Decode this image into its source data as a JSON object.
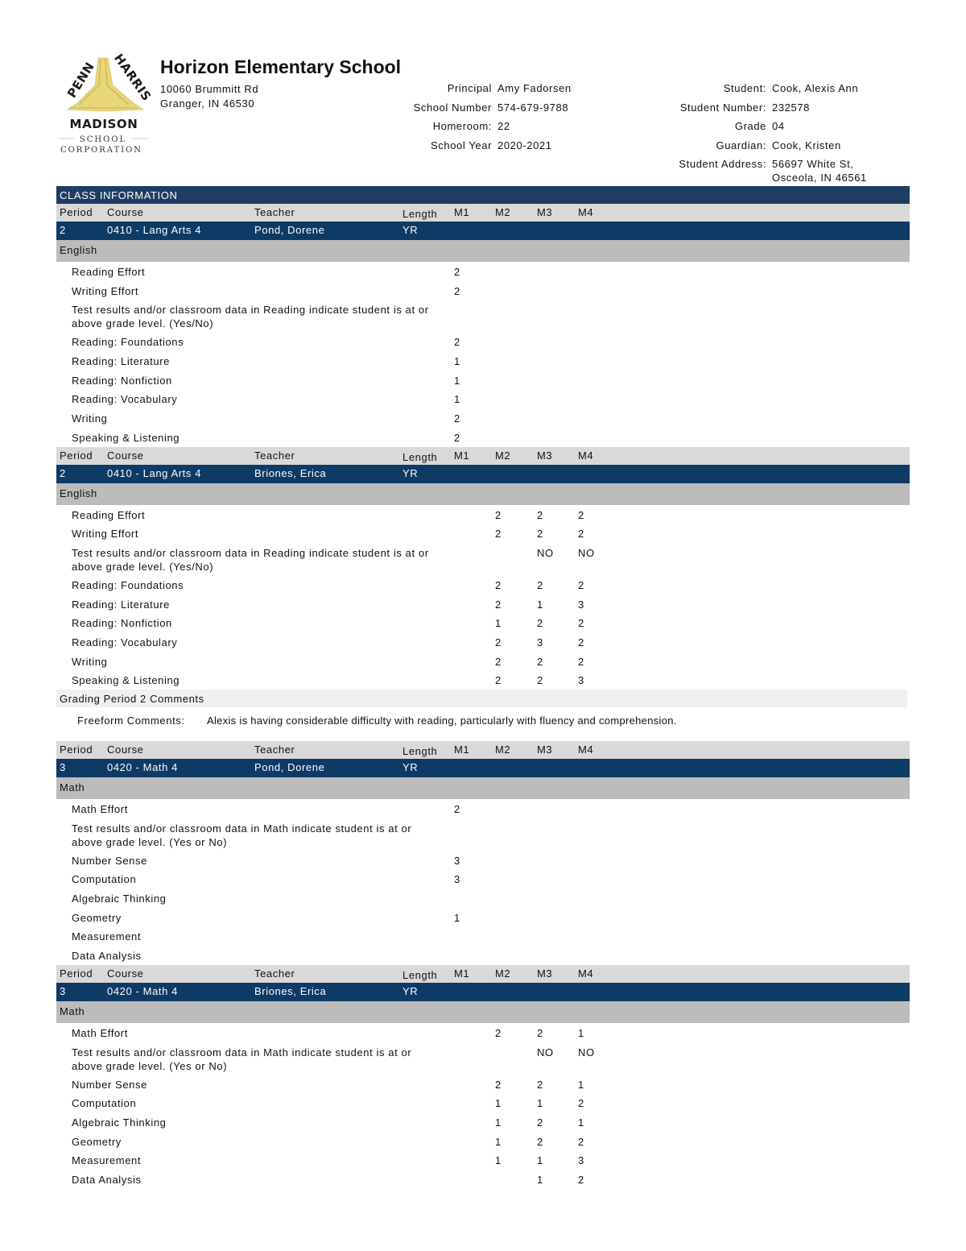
{
  "logo": {
    "text_top_left": "PENN",
    "text_top_right": "HARRIS",
    "text_mid": "MADISON",
    "text_school": "SCHOOL",
    "text_corp": "CORPORATION",
    "gold": "#e8d77a",
    "dark": "#1a1a1a"
  },
  "school": {
    "name": "Horizon Elementary School",
    "address1": "10060 Brummitt Rd",
    "address2": "Granger, IN 46530"
  },
  "school_info": [
    {
      "label": "Principal",
      "value": "Amy Fadorsen"
    },
    {
      "label": "School Number",
      "value": "574-679-9788"
    },
    {
      "label": "Homeroom:",
      "value": "22"
    },
    {
      "label": "School Year",
      "value": "2020-2021"
    }
  ],
  "student_info": [
    {
      "label": "Student:",
      "value": "Cook, Alexis Ann"
    },
    {
      "label": "Student Number:",
      "value": "232578"
    },
    {
      "label": "Grade",
      "value": "04"
    },
    {
      "label": "Guardian:",
      "value": "Cook, Kristen"
    },
    {
      "label": "Student Address:",
      "value": "56697 White St,",
      "value2": "Osceola, IN 46561"
    }
  ],
  "colors": {
    "class_info_bar": "#1f3d63",
    "course_row": "#0e3a66",
    "header_row": "#d9d9d9",
    "subject_row": "#bcbcbc"
  },
  "class_info_title": "CLASS INFORMATION",
  "columns": {
    "period": "Period",
    "course": "Course",
    "teacher": "Teacher",
    "length": "Length",
    "m1": "M1",
    "m2": "M2",
    "m3": "M3",
    "m4": "M4"
  },
  "blocks": [
    {
      "period": "2",
      "course": "0410 - Lang Arts 4",
      "teacher": "Pond, Dorene",
      "length": "YR",
      "subject": "English",
      "items": [
        {
          "name": "Reading Effort",
          "m": [
            "2",
            "",
            "",
            ""
          ]
        },
        {
          "name": "Writing Effort",
          "m": [
            "2",
            "",
            "",
            ""
          ]
        },
        {
          "name": "Test results and/or classroom data in Reading indicate student is at or",
          "name2": "above grade level. (Yes/No)",
          "m": [
            "",
            "",
            "",
            ""
          ]
        },
        {
          "name": "Reading: Foundations",
          "m": [
            "2",
            "",
            "",
            ""
          ]
        },
        {
          "name": "Reading: Literature",
          "m": [
            "1",
            "",
            "",
            ""
          ]
        },
        {
          "name": "Reading: Nonfiction",
          "m": [
            "1",
            "",
            "",
            ""
          ]
        },
        {
          "name": "Reading: Vocabulary",
          "m": [
            "1",
            "",
            "",
            ""
          ]
        },
        {
          "name": "Writing",
          "m": [
            "2",
            "",
            "",
            ""
          ]
        },
        {
          "name": "Speaking & Listening",
          "m": [
            "2",
            "",
            "",
            ""
          ]
        }
      ]
    },
    {
      "period": "2",
      "course": "0410 - Lang Arts 4",
      "teacher": "Briones, Erica",
      "length": "YR",
      "subject": "English",
      "items": [
        {
          "name": "Reading Effort",
          "m": [
            "",
            "2",
            "2",
            "2"
          ]
        },
        {
          "name": "Writing Effort",
          "m": [
            "",
            "2",
            "2",
            "2"
          ]
        },
        {
          "name": "Test results and/or classroom data in Reading indicate student is at or",
          "name2": "above grade level. (Yes/No)",
          "m": [
            "",
            "",
            "NO",
            "NO"
          ]
        },
        {
          "name": "Reading: Foundations",
          "m": [
            "",
            "2",
            "2",
            "2"
          ]
        },
        {
          "name": "Reading: Literature",
          "m": [
            "",
            "2",
            "1",
            "3"
          ]
        },
        {
          "name": "Reading: Nonfiction",
          "m": [
            "",
            "1",
            "2",
            "2"
          ]
        },
        {
          "name": "Reading: Vocabulary",
          "m": [
            "",
            "2",
            "3",
            "2"
          ]
        },
        {
          "name": "Writing",
          "m": [
            "",
            "2",
            "2",
            "2"
          ]
        },
        {
          "name": "Speaking & Listening",
          "m": [
            "",
            "2",
            "2",
            "3"
          ]
        }
      ],
      "comments": {
        "title": "Grading Period 2 Comments",
        "label": "Freeform Comments:",
        "text": "Alexis is having considerable difficulty with reading, particularly with fluency and comprehension."
      }
    },
    {
      "period": "3",
      "course": "0420 - Math 4",
      "teacher": "Pond, Dorene",
      "length": "YR",
      "subject": "Math",
      "items": [
        {
          "name": "Math Effort",
          "m": [
            "2",
            "",
            "",
            ""
          ]
        },
        {
          "name": "Test results and/or classroom data in Math indicate student is at or",
          "name2": "above grade level. (Yes or No)",
          "m": [
            "",
            "",
            "",
            ""
          ]
        },
        {
          "name": "Number Sense",
          "m": [
            "3",
            "",
            "",
            ""
          ]
        },
        {
          "name": "Computation",
          "m": [
            "3",
            "",
            "",
            ""
          ]
        },
        {
          "name": "Algebraic Thinking",
          "m": [
            "",
            "",
            "",
            ""
          ]
        },
        {
          "name": "Geometry",
          "m": [
            "1",
            "",
            "",
            ""
          ]
        },
        {
          "name": "Measurement",
          "m": [
            "",
            "",
            "",
            ""
          ]
        },
        {
          "name": "Data Analysis",
          "m": [
            "",
            "",
            "",
            ""
          ]
        }
      ]
    },
    {
      "period": "3",
      "course": "0420 - Math 4",
      "teacher": "Briones, Erica",
      "length": "YR",
      "subject": "Math",
      "items": [
        {
          "name": "Math Effort",
          "m": [
            "",
            "2",
            "2",
            "1"
          ]
        },
        {
          "name": "Test results and/or classroom data in Math indicate student is at or",
          "name2": "above grade level. (Yes or No)",
          "m": [
            "",
            "",
            "NO",
            "NO"
          ]
        },
        {
          "name": "Number Sense",
          "m": [
            "",
            "2",
            "2",
            "1"
          ]
        },
        {
          "name": "Computation",
          "m": [
            "",
            "1",
            "1",
            "2"
          ]
        },
        {
          "name": "Algebraic Thinking",
          "m": [
            "",
            "1",
            "2",
            "1"
          ]
        },
        {
          "name": "Geometry",
          "m": [
            "",
            "1",
            "2",
            "2"
          ]
        },
        {
          "name": "Measurement",
          "m": [
            "",
            "1",
            "1",
            "3"
          ]
        },
        {
          "name": "Data Analysis",
          "m": [
            "",
            "",
            "1",
            "2"
          ]
        }
      ]
    }
  ]
}
